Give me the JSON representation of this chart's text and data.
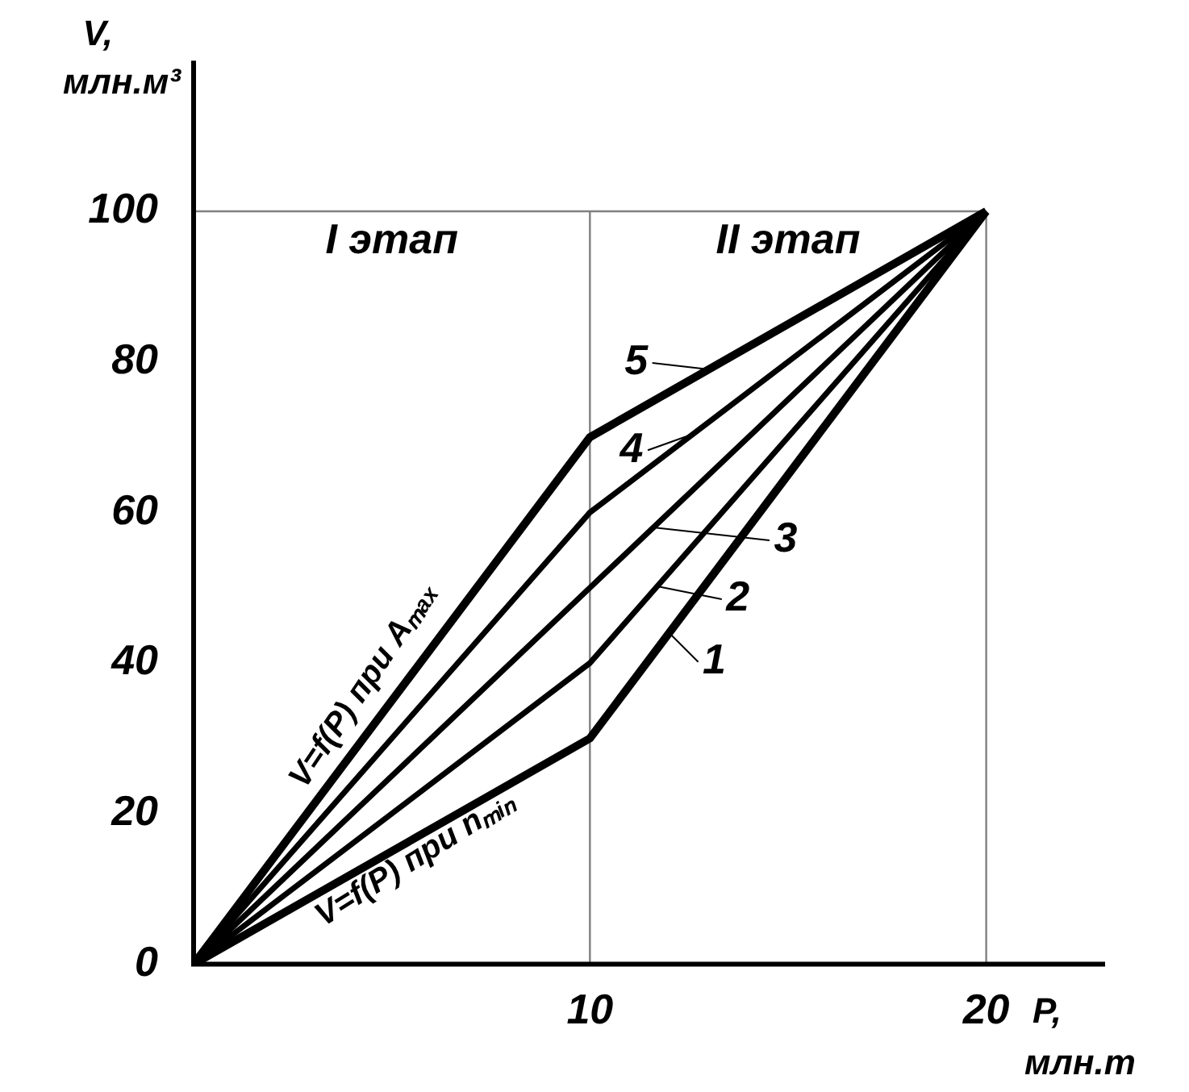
{
  "chart_data": {
    "type": "line",
    "xlabel": "P, млн.т",
    "ylabel": "V, млн.м³",
    "x": [
      0,
      10,
      20
    ],
    "series": [
      {
        "name": "1",
        "color": "#000000",
        "values": [
          0,
          30,
          100
        ]
      },
      {
        "name": "2",
        "color": "#000000",
        "values": [
          0,
          40,
          100
        ]
      },
      {
        "name": "3",
        "color": "#000000",
        "values": [
          0,
          50,
          100
        ]
      },
      {
        "name": "4",
        "color": "#000000",
        "values": [
          0,
          60,
          100
        ]
      },
      {
        "name": "5",
        "color": "#000000",
        "values": [
          0,
          70,
          100
        ]
      }
    ],
    "xlim": [
      0,
      23
    ],
    "ylim": [
      0,
      120
    ],
    "xticks": [
      10,
      20
    ],
    "yticks": [
      0,
      20,
      40,
      60,
      80,
      100
    ],
    "grid": false,
    "legend": "right",
    "marker": "none",
    "line_style": "solid",
    "ref_lines": [
      {
        "axis": "x",
        "value": 10,
        "color": "#808080"
      },
      {
        "axis": "x",
        "value": 20,
        "color": "#808080"
      },
      {
        "axis": "y",
        "value": 100,
        "color": "#808080"
      }
    ],
    "annotations": [
      "I этап",
      "II этап",
      "V=f(P) при Aₘₐₓ",
      "V=f(P) при nₘᵢₙ"
    ]
  }
}
